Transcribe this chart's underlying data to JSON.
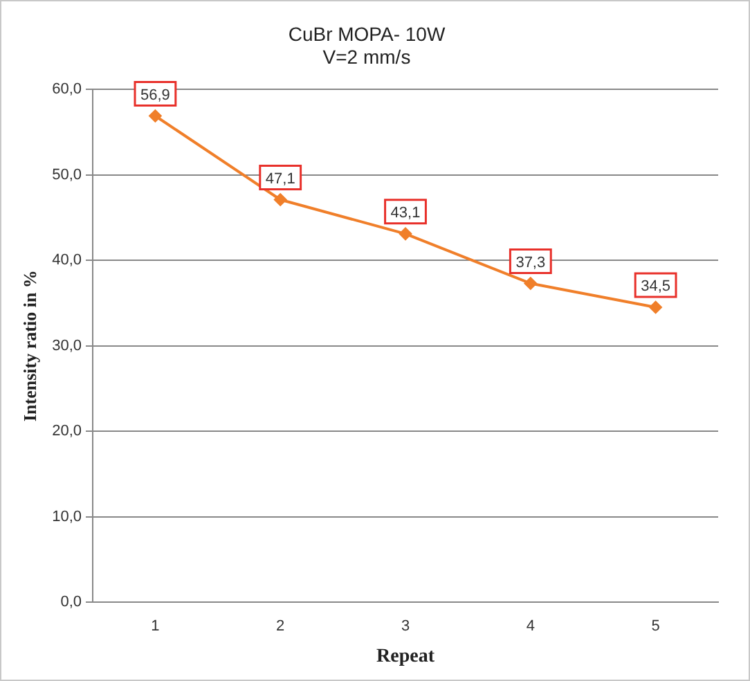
{
  "chart_data": {
    "type": "line",
    "title": [
      "CuBr MOPA- 10W",
      "V=2 mm/s"
    ],
    "xlabel": "Repeat",
    "ylabel": "Intensity ratio in %",
    "categories": [
      "1",
      "2",
      "3",
      "4",
      "5"
    ],
    "series": [
      {
        "color": "#f07f2a",
        "values": [
          56.9,
          47.1,
          43.1,
          37.3,
          34.5
        ],
        "value_labels": [
          "56,9",
          "47,1",
          "43,1",
          "37,3",
          "34,5"
        ]
      }
    ],
    "ylim": [
      0,
      60
    ],
    "yticks": [
      {
        "value": 0,
        "label": "0,0"
      },
      {
        "value": 10,
        "label": "10,0"
      },
      {
        "value": 20,
        "label": "20,0"
      },
      {
        "value": 30,
        "label": "30,0"
      },
      {
        "value": 40,
        "label": "40,0"
      },
      {
        "value": 50,
        "label": "50,0"
      },
      {
        "value": 60,
        "label": "60,0"
      }
    ],
    "grid": "y",
    "legend": false,
    "marker": "diamond",
    "line_style": "solid"
  }
}
